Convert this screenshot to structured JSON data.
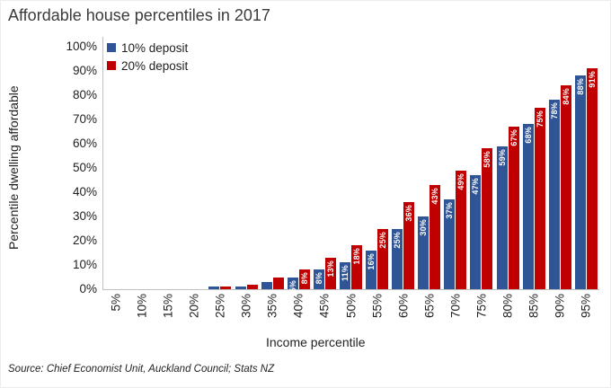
{
  "header": {
    "title": "Affordable house percentiles in 2017"
  },
  "axes": {
    "x_title": "Income percentile",
    "y_title": "Percentile dwelling affordable"
  },
  "footer": {
    "source": "Source: Chief Economist Unit, Auckland Council; Stats NZ"
  },
  "colors": {
    "deposit10": "#2F5597",
    "deposit20": "#C00000",
    "axis_line": "#BFBFBF",
    "bar_label_text": "#FFFFFF"
  },
  "chart_data": {
    "type": "bar",
    "title": "Affordable house percentiles in 2017",
    "xlabel": "Income percentile",
    "ylabel": "Percentile dwelling affordable",
    "ylim": [
      0,
      100
    ],
    "ytick_step": 10,
    "ytick_labels": [
      "0%",
      "10%",
      "20%",
      "30%",
      "40%",
      "50%",
      "60%",
      "70%",
      "80%",
      "90%",
      "100%"
    ],
    "grid": false,
    "legend_position": "top-left-inside",
    "categories": [
      "5%",
      "10%",
      "15%",
      "20%",
      "25%",
      "30%",
      "35%",
      "40%",
      "45%",
      "50%",
      "55%",
      "60%",
      "65%",
      "70%",
      "75%",
      "80%",
      "85%",
      "90%",
      "95%"
    ],
    "series": [
      {
        "name": "10% deposit",
        "color": "#2F5597",
        "values": [
          0,
          0,
          0,
          0,
          1,
          1,
          3,
          5,
          8,
          11,
          16,
          25,
          30,
          37,
          47,
          59,
          68,
          78,
          88
        ],
        "labels": [
          "",
          "",
          "",
          "",
          "",
          "",
          "",
          "5%",
          "8%",
          "11%",
          "16%",
          "25%",
          "30%",
          "37%",
          "47%",
          "59%",
          "68%",
          "78%",
          "88%"
        ]
      },
      {
        "name": "20% deposit",
        "color": "#C00000",
        "values": [
          0,
          0,
          0,
          0,
          1,
          2,
          5,
          8,
          13,
          18,
          25,
          36,
          43,
          49,
          58,
          67,
          75,
          84,
          91
        ],
        "labels": [
          "",
          "",
          "",
          "",
          "",
          "",
          "",
          "8%",
          "13%",
          "18%",
          "25%",
          "36%",
          "43%",
          "49%",
          "58%",
          "67%",
          "75%",
          "84%",
          "91%"
        ]
      }
    ]
  }
}
